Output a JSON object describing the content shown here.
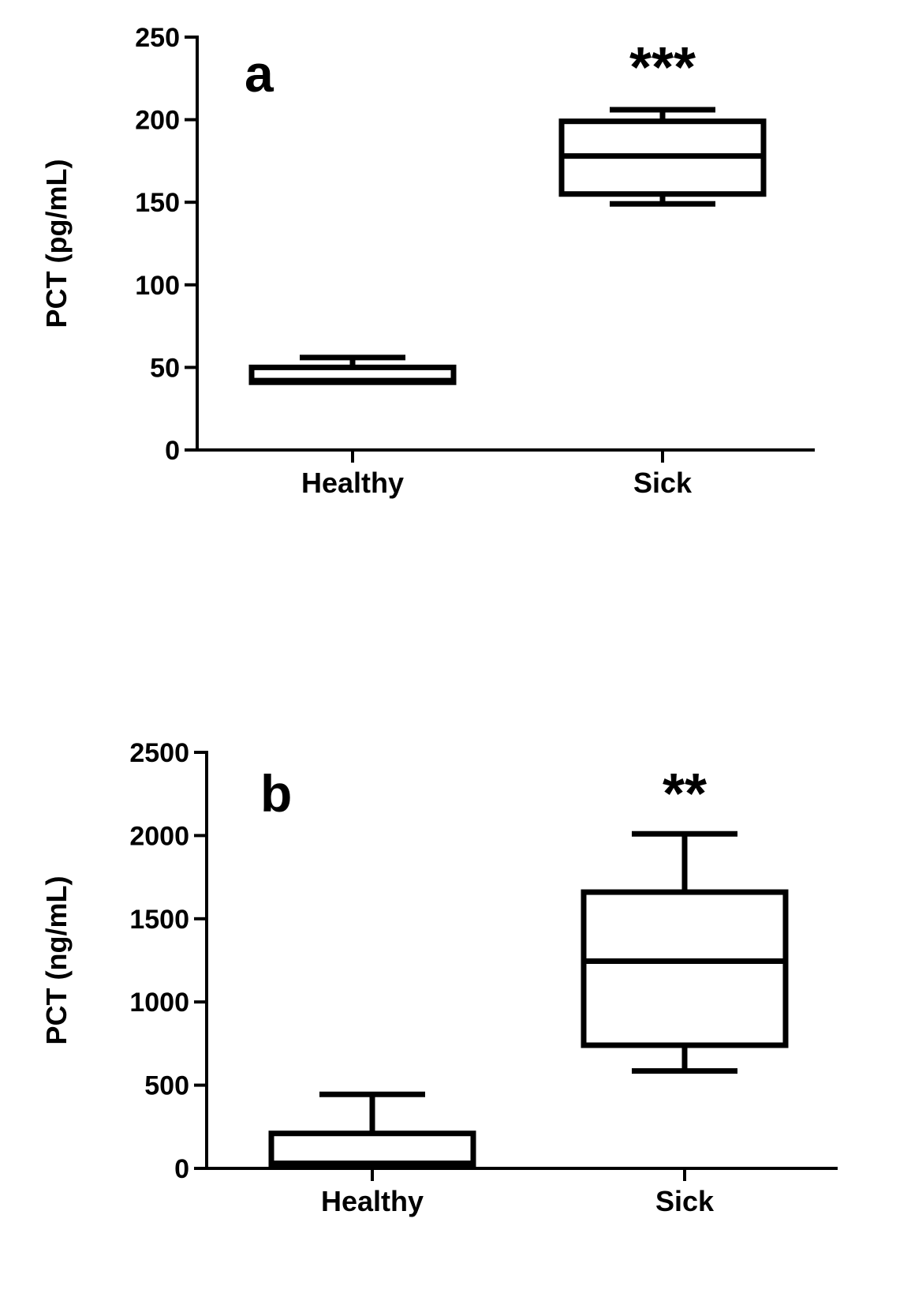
{
  "chart_data": [
    {
      "type": "box",
      "panel_label": "a",
      "ylabel": "PCT (pg/mL)",
      "xlabel": "",
      "ylim": [
        0,
        250
      ],
      "yticks": [
        0,
        50,
        100,
        150,
        200,
        250
      ],
      "ytick_labels": [
        "0",
        "50",
        "100",
        "150",
        "200",
        "250"
      ],
      "grid": false,
      "categories": [
        "Healthy",
        "Sick"
      ],
      "boxes": [
        {
          "category": "Healthy",
          "min": 40,
          "q1": 41,
          "median": 42,
          "q3": 50,
          "max": 56,
          "significance": ""
        },
        {
          "category": "Sick",
          "min": 149,
          "q1": 155,
          "median": 178,
          "q3": 199,
          "max": 206,
          "significance": "***"
        }
      ]
    },
    {
      "type": "box",
      "panel_label": "b",
      "ylabel": "PCT (ng/mL)",
      "xlabel": "",
      "ylim": [
        0,
        2500
      ],
      "yticks": [
        0,
        500,
        1000,
        1500,
        2000,
        2500
      ],
      "ytick_labels": [
        "0",
        "500",
        "1000",
        "1500",
        "2000",
        "2500"
      ],
      "grid": false,
      "categories": [
        "Healthy",
        "Sick"
      ],
      "boxes": [
        {
          "category": "Healthy",
          "min": 20,
          "q1": 25,
          "median": 30,
          "q3": 210,
          "max": 445,
          "significance": ""
        },
        {
          "category": "Sick",
          "min": 585,
          "q1": 740,
          "median": 1245,
          "q3": 1660,
          "max": 2010,
          "significance": "**"
        }
      ]
    }
  ]
}
